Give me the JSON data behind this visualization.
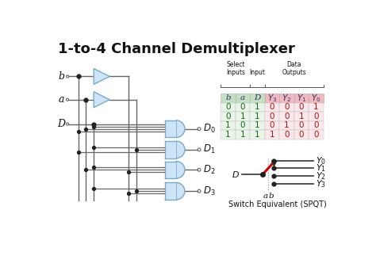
{
  "title": "1-to-4 Channel Demultiplexer",
  "bg_color": "#ffffff",
  "title_fontsize": 13,
  "gate_fill": "#cce4f5",
  "gate_edge": "#7aaac8",
  "wire_color": "#666666",
  "dot_color": "#222222",
  "table_green_header": "#c5dfc5",
  "table_green_data": "#e8f5e8",
  "table_red_header": "#f0b8c0",
  "table_red_data": "#fce8ea",
  "switch_red": "#cc0000",
  "switch_dark": "#333333",
  "label_color": "#111111",
  "table_rows": [
    [
      0,
      0,
      1,
      0,
      0,
      0,
      1
    ],
    [
      0,
      1,
      1,
      0,
      0,
      1,
      0
    ],
    [
      1,
      0,
      1,
      0,
      1,
      0,
      0
    ],
    [
      1,
      1,
      1,
      1,
      0,
      0,
      0
    ]
  ]
}
